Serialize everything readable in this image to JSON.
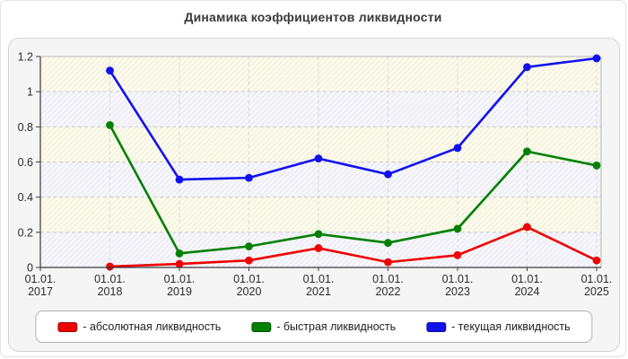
{
  "chart_data": {
    "type": "line",
    "title": "Динамика коэффициентов ликвидности",
    "x_tick_labels": [
      [
        "01.01.",
        "2017"
      ],
      [
        "01.01.",
        "2018"
      ],
      [
        "01.01.",
        "2019"
      ],
      [
        "01.01.",
        "2020"
      ],
      [
        "01.01.",
        "2021"
      ],
      [
        "01.01.",
        "2022"
      ],
      [
        "01.01.",
        "2023"
      ],
      [
        "01.01.",
        "2024"
      ],
      [
        "01.01.",
        "2025"
      ]
    ],
    "y_tick_labels": [
      "0",
      "0.2",
      "0.4",
      "0.6",
      "0.8",
      "1",
      "1.2"
    ],
    "ylim": [
      0,
      1.2
    ],
    "grid": "dashed",
    "legend_position": "bottom",
    "x": [
      "2018",
      "2019",
      "2020",
      "2021",
      "2022",
      "2023",
      "2024",
      "2025"
    ],
    "series": [
      {
        "name": "абсолютная ликвидность",
        "color": "#ee0000",
        "values": [
          0.005,
          0.02,
          0.04,
          0.11,
          0.03,
          0.07,
          0.23,
          0.04
        ]
      },
      {
        "name": "быстрая ликвидность",
        "color": "#018001",
        "values": [
          0.81,
          0.08,
          0.12,
          0.19,
          0.14,
          0.22,
          0.66,
          0.58
        ]
      },
      {
        "name": "текущая ликвидность",
        "color": "#1111ee",
        "values": [
          1.12,
          0.5,
          0.51,
          0.62,
          0.53,
          0.68,
          1.14,
          1.19
        ]
      }
    ]
  },
  "legend": {
    "items": [
      {
        "label": "- абсолютная ликвидность",
        "color": "#ee0000"
      },
      {
        "label": "- быстрая ликвидность",
        "color": "#018001"
      },
      {
        "label": "- текущая ликвидность",
        "color": "#1111ee"
      }
    ]
  },
  "colors": {
    "panel_bg": "#f5f5f5",
    "band_ivory": "#fcfbec",
    "band_lavender": "#f6f6fb",
    "grid": "#cccccc",
    "axis": "#3a3a3a",
    "text": "#2b2b2b"
  }
}
